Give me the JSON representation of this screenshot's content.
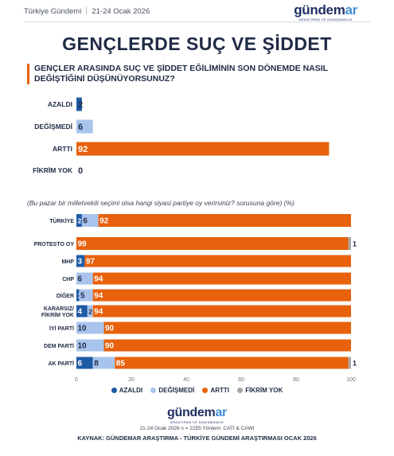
{
  "header": {
    "source": "Türkiye Gündemi",
    "date": "21-24 Ocak 2026"
  },
  "logo": {
    "word_main": "gündem",
    "word_tail": "ar",
    "subtitle": "ARAŞTIRMA VE DANIŞMANLIK"
  },
  "title": "GENÇLERDE SUÇ VE ŞİDDET",
  "question": "GENÇLER ARASINDA SUÇ VE ŞİDDET EĞİLİMİNİN SON DÖNEMDE NASIL DEĞİŞTİĞİNİ DÜŞÜNÜYORSUNUZ?",
  "subnote": "(Bu pazar bir milletvekili seçimi olsa hangi siyasi partiye oy verirsiniz? sorusuna göre) (%)",
  "colors": {
    "azaldi": "#1f5aa6",
    "degismedi": "#a9c4ec",
    "artti": "#e8610c",
    "fikrim_yok": "#a6a6a6"
  },
  "chart_data": [
    {
      "type": "bar",
      "orientation": "horizontal",
      "categories": [
        "AZALDI",
        "DEĞİŞMEDİ",
        "ARTTI",
        "FİKRİM YOK"
      ],
      "values": [
        2,
        6,
        92,
        0
      ],
      "colors": [
        "#1f5aa6",
        "#a9c4ec",
        "#e8610c",
        "#a6a6a6"
      ],
      "xlim": [
        0,
        100
      ]
    },
    {
      "type": "bar",
      "orientation": "horizontal",
      "stacked": true,
      "categories": [
        "TÜRKİYE",
        "PROTESTO OY",
        "MHP",
        "CHP",
        "DİĞER",
        "KARARSIZ/ FİKRİM YOK",
        "İYİ PARTİ",
        "DEM PARTİ",
        "AK PARTİ"
      ],
      "series": [
        {
          "name": "AZALDI",
          "values": [
            2,
            0,
            3,
            0,
            1,
            4,
            0,
            0,
            6
          ]
        },
        {
          "name": "DEĞİŞMEDİ",
          "values": [
            6,
            0,
            0,
            6,
            5,
            2,
            10,
            10,
            8
          ]
        },
        {
          "name": "ARTTI",
          "values": [
            92,
            99,
            97,
            94,
            94,
            94,
            90,
            90,
            85
          ]
        },
        {
          "name": "FİKRİM YOK",
          "values": [
            0,
            1,
            0,
            0,
            0,
            0,
            0,
            0,
            1
          ]
        }
      ],
      "xticks": [
        0,
        20,
        40,
        60,
        80,
        100
      ],
      "xlim": [
        0,
        100
      ],
      "legend": "bottom"
    }
  ],
  "footer": {
    "methodology": "21-24 Ocak 2026 n = 2255 Yöntem: CATI & CAWI",
    "source": "KAYNAK: GÜNDEMAR ARAŞTIRMA - TÜRKİYE GÜNDEMİ ARAŞTIRMASI OCAK 2026"
  }
}
